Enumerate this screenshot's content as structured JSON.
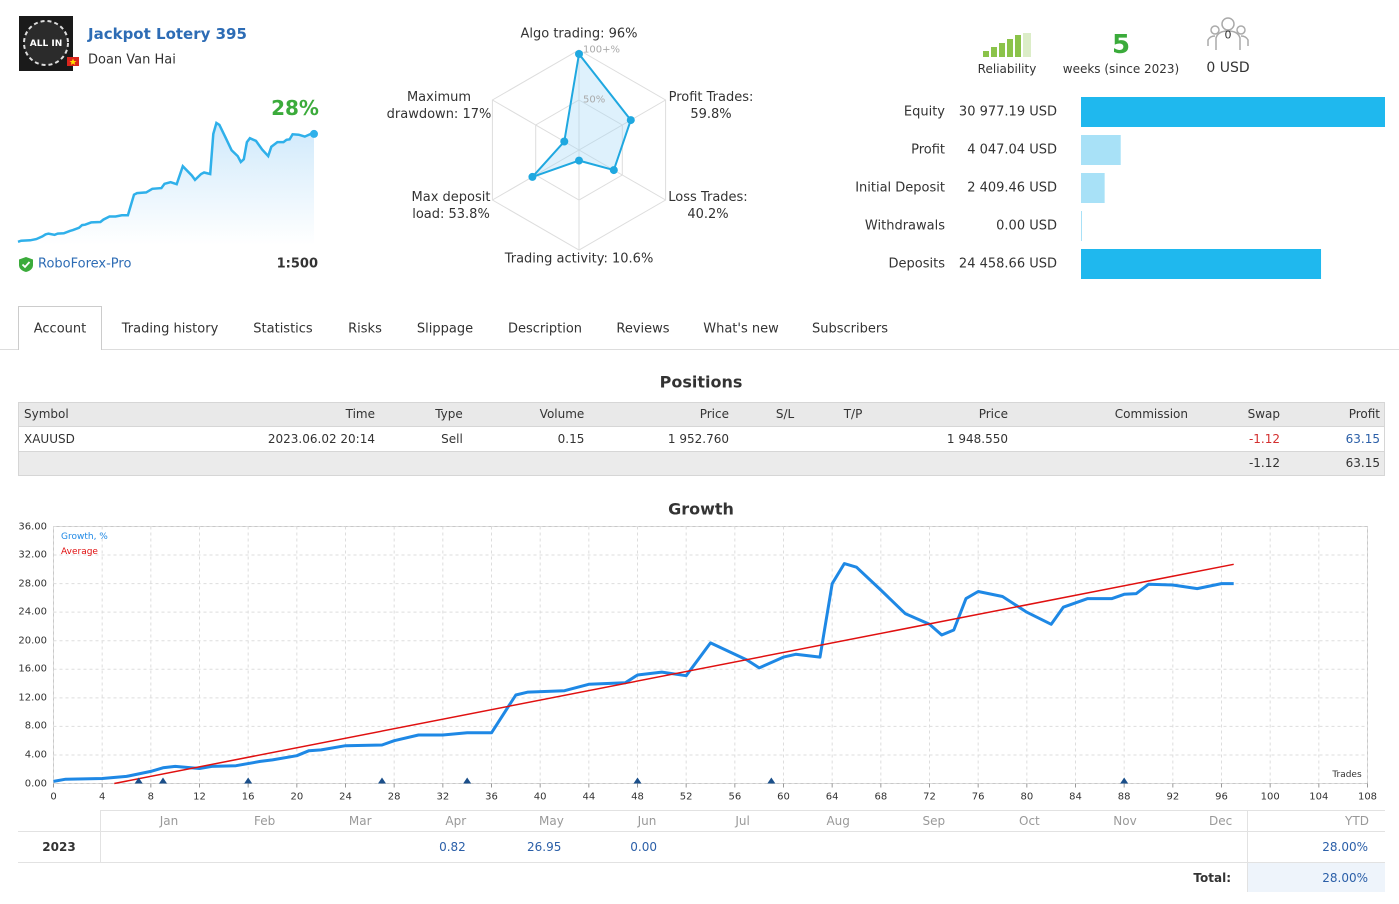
{
  "header": {
    "logo_text": "ALL IN",
    "title": "Jackpot Lotery 395",
    "author": "Doan Van Hai",
    "growth": "28%",
    "broker": "RoboForex-Pro",
    "leverage": "1:500"
  },
  "stats": {
    "reliability_label": "Reliability",
    "weeks": "5",
    "weeks_label": "weeks (since 2023)",
    "subscribers": "0",
    "funds": "0 USD"
  },
  "radar": {
    "axes": [
      {
        "label": "Algo trading: 96%",
        "value": 96
      },
      {
        "label": "Profit Trades: 59.8%",
        "value": 59.8
      },
      {
        "label": "Loss Trades: 40.2%",
        "value": 40.2
      },
      {
        "label": "Trading activity: 10.6%",
        "value": 10.6
      },
      {
        "label": "Max deposit load: 53.8%",
        "value": 53.8
      },
      {
        "label": "Maximum drawdown: 17%",
        "value": 17
      }
    ],
    "ticks": [
      {
        "value": 100,
        "label": "100+%"
      },
      {
        "value": 50,
        "label": "50%"
      }
    ]
  },
  "balance": [
    {
      "label": "Equity",
      "value": 30977.19,
      "value_label": "30 977.19 USD",
      "color": "#1fb8ee"
    },
    {
      "label": "Profit",
      "value": 4047.04,
      "value_label": "4 047.04 USD",
      "color": "#a8e1f7"
    },
    {
      "label": "Initial Deposit",
      "value": 2409.46,
      "value_label": "2 409.46 USD",
      "color": "#a8e1f7"
    },
    {
      "label": "Withdrawals",
      "value": 0,
      "value_label": "0.00 USD",
      "color": "#a8e1f7"
    },
    {
      "label": "Deposits",
      "value": 24458.66,
      "value_label": "24 458.66 USD",
      "color": "#1fb8ee"
    }
  ],
  "tabs": [
    "Account",
    "Trading history",
    "Statistics",
    "Risks",
    "Slippage",
    "Description",
    "Reviews",
    "What's new",
    "Subscribers"
  ],
  "positions": {
    "title": "Positions",
    "columns": [
      "Symbol",
      "Time",
      "Type",
      "Volume",
      "Price",
      "S/L",
      "T/P",
      "Price",
      "Commission",
      "Swap",
      "Profit"
    ],
    "rows": [
      {
        "symbol": "XAUUSD",
        "time": "2023.06.02 20:14",
        "type": "Sell",
        "volume": "0.15",
        "open_price": "1 952.760",
        "price": "1 948.550",
        "swap": "-1.12",
        "profit": "63.15"
      }
    ],
    "total": {
      "swap": "-1.12",
      "profit": "63.15"
    }
  },
  "growth_chart": {
    "type": "line",
    "title": "Growth",
    "x_label": "Trades",
    "xlim": [
      0,
      108
    ],
    "xticks": [
      0,
      4,
      8,
      12,
      16,
      20,
      24,
      28,
      32,
      36,
      40,
      44,
      48,
      52,
      56,
      60,
      64,
      68,
      72,
      76,
      80,
      84,
      88,
      92,
      96,
      100,
      104,
      108
    ],
    "ylim": [
      0,
      36
    ],
    "yticks": [
      {
        "value": 0,
        "label": "0.00"
      },
      {
        "value": 4,
        "label": "4.00"
      },
      {
        "value": 8,
        "label": "8.00"
      },
      {
        "value": 12,
        "label": "12.00"
      },
      {
        "value": 16,
        "label": "16.00"
      },
      {
        "value": 20,
        "label": "20.00"
      },
      {
        "value": 24,
        "label": "24.00"
      },
      {
        "value": 28,
        "label": "28.00"
      },
      {
        "value": 32,
        "label": "32.00"
      },
      {
        "value": 36,
        "label": "36.00"
      }
    ],
    "grid": true,
    "series": [
      {
        "name": "Growth, %",
        "color": "#1e88e5",
        "x": [
          0,
          1,
          4,
          6,
          8,
          9,
          10,
          12,
          13,
          15,
          17,
          18,
          20,
          21,
          22,
          24,
          27,
          28,
          30,
          32,
          34,
          36,
          38,
          39,
          42,
          44,
          47,
          48,
          50,
          52,
          54,
          57,
          58,
          60,
          61,
          63,
          64,
          65,
          66,
          68,
          70,
          72,
          73,
          74,
          75,
          76,
          78,
          80,
          82,
          83,
          85,
          87,
          88,
          89,
          90,
          92,
          94,
          96,
          97
        ],
        "values": [
          0.3,
          0.6,
          0.7,
          1.0,
          1.7,
          2.2,
          2.4,
          2.1,
          2.4,
          2.5,
          3.1,
          3.3,
          3.9,
          4.6,
          4.7,
          5.3,
          5.4,
          6.0,
          6.8,
          6.8,
          7.1,
          7.1,
          12.4,
          12.8,
          13.0,
          13.9,
          14.1,
          15.2,
          15.6,
          15.1,
          19.7,
          17.3,
          16.2,
          17.7,
          18.1,
          17.7,
          28.0,
          30.8,
          30.3,
          27.1,
          23.8,
          22.3,
          20.8,
          21.5,
          25.9,
          26.9,
          26.2,
          24.0,
          22.3,
          24.7,
          25.9,
          25.9,
          26.5,
          26.6,
          27.9,
          27.8,
          27.3,
          28.0,
          28.0
        ]
      },
      {
        "name": "Average",
        "color": "#e01010",
        "x": [
          5,
          97
        ],
        "values": [
          0,
          30.7
        ]
      }
    ],
    "markers": [
      7,
      9,
      16,
      27,
      34,
      48,
      59,
      88
    ]
  },
  "returns": {
    "months": [
      "Jan",
      "Feb",
      "Mar",
      "Apr",
      "May",
      "Jun",
      "Jul",
      "Aug",
      "Sep",
      "Oct",
      "Nov",
      "Dec"
    ],
    "ytd_label": "YTD",
    "rows": [
      {
        "year": "2023",
        "values": {
          "Apr": "0.82",
          "May": "26.95",
          "Jun": "0.00"
        },
        "ytd": "28.00%"
      }
    ],
    "total_label": "Total:",
    "total": "28.00%"
  }
}
